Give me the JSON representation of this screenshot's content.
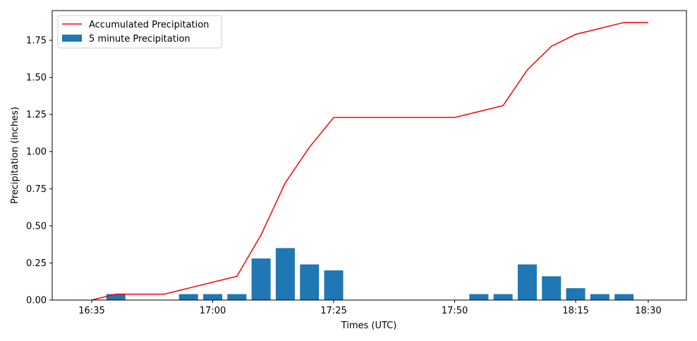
{
  "chart_data": {
    "type": "bar",
    "xlabel": "Times (UTC)",
    "ylabel": "Precipitation (inches)",
    "ylim": [
      0,
      1.95
    ],
    "yticks": [
      "0.00",
      "0.25",
      "0.50",
      "0.75",
      "1.00",
      "1.25",
      "1.50",
      "1.75"
    ],
    "xticks": [
      "16:35",
      "17:00",
      "17:25",
      "17:50",
      "18:15",
      "18:30"
    ],
    "grid": false,
    "legend_position": "top-left",
    "series": [
      {
        "name": "Accumulated Precipitation",
        "kind": "line",
        "color": "#ff0000",
        "points": [
          [
            "16:35",
            0.0
          ],
          [
            "16:40",
            0.04
          ],
          [
            "16:45",
            0.04
          ],
          [
            "16:50",
            0.04
          ],
          [
            "16:55",
            0.08
          ],
          [
            "17:00",
            0.12
          ],
          [
            "17:05",
            0.16
          ],
          [
            "17:10",
            0.44
          ],
          [
            "17:15",
            0.79
          ],
          [
            "17:20",
            1.03
          ],
          [
            "17:25",
            1.23
          ],
          [
            "17:30",
            1.23
          ],
          [
            "17:35",
            1.23
          ],
          [
            "17:40",
            1.23
          ],
          [
            "17:45",
            1.23
          ],
          [
            "17:50",
            1.23
          ],
          [
            "17:55",
            1.27
          ],
          [
            "18:00",
            1.31
          ],
          [
            "18:05",
            1.55
          ],
          [
            "18:10",
            1.71
          ],
          [
            "18:15",
            1.79
          ],
          [
            "18:20",
            1.83
          ],
          [
            "18:25",
            1.87
          ],
          [
            "18:30",
            1.87
          ]
        ]
      },
      {
        "name": "5 minute Precipitation",
        "kind": "bar",
        "color": "#1f77b4",
        "points": [
          [
            "16:40",
            0.04
          ],
          [
            "16:55",
            0.04
          ],
          [
            "17:00",
            0.04
          ],
          [
            "17:05",
            0.04
          ],
          [
            "17:10",
            0.28
          ],
          [
            "17:15",
            0.35
          ],
          [
            "17:20",
            0.24
          ],
          [
            "17:25",
            0.2
          ],
          [
            "17:55",
            0.04
          ],
          [
            "18:00",
            0.04
          ],
          [
            "18:05",
            0.24
          ],
          [
            "18:10",
            0.16
          ],
          [
            "18:15",
            0.08
          ],
          [
            "18:20",
            0.04
          ],
          [
            "18:25",
            0.04
          ]
        ]
      }
    ]
  }
}
